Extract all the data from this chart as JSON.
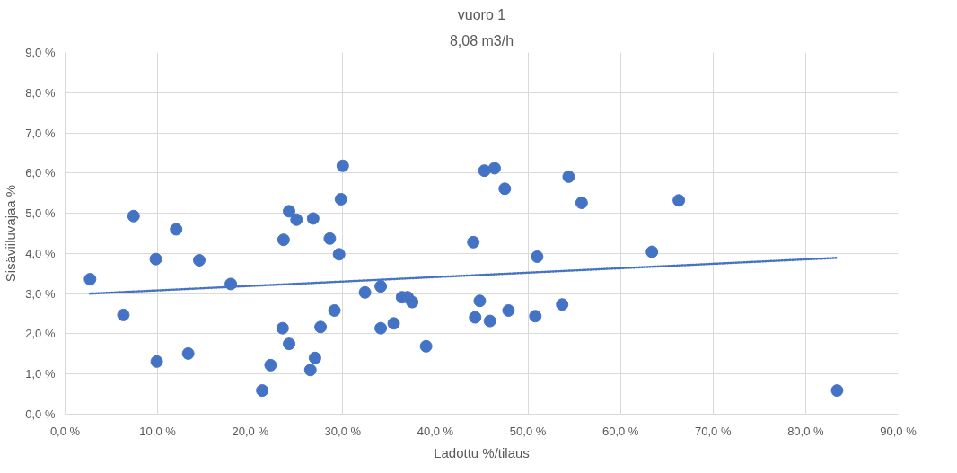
{
  "chart_data": {
    "type": "scatter",
    "title": "vuoro 1",
    "subtitle": "8,08 m3/h",
    "xlabel": "Ladottu %/tilaus",
    "ylabel": "Sisäviiluvajaa %",
    "xlim": [
      0,
      90
    ],
    "ylim": [
      0,
      9
    ],
    "xticks": [
      {
        "value": 0,
        "label": "0,0 %"
      },
      {
        "value": 10,
        "label": "10,0 %"
      },
      {
        "value": 20,
        "label": "20,0 %"
      },
      {
        "value": 30,
        "label": "30,0 %"
      },
      {
        "value": 40,
        "label": "40,0 %"
      },
      {
        "value": 50,
        "label": "50,0 %"
      },
      {
        "value": 60,
        "label": "60,0 %"
      },
      {
        "value": 70,
        "label": "70,0 %"
      },
      {
        "value": 80,
        "label": "80,0 %"
      },
      {
        "value": 90,
        "label": "90,0 %"
      }
    ],
    "yticks": [
      {
        "value": 0,
        "label": "0,0 %"
      },
      {
        "value": 1,
        "label": "1,0 %"
      },
      {
        "value": 2,
        "label": "2,0 %"
      },
      {
        "value": 3,
        "label": "3,0 %"
      },
      {
        "value": 4,
        "label": "4,0 %"
      },
      {
        "value": 5,
        "label": "5,0 %"
      },
      {
        "value": 6,
        "label": "6,0 %"
      },
      {
        "value": 7,
        "label": "7,0 %"
      },
      {
        "value": 8,
        "label": "8,0 %"
      },
      {
        "value": 9,
        "label": "9,0 %"
      }
    ],
    "grid": true,
    "marker": "circle",
    "series": [
      {
        "color": "#4472c4",
        "x": [
          2.7,
          6.3,
          7.4,
          9.8,
          9.9,
          12.0,
          13.3,
          14.5,
          17.9,
          21.3,
          22.2,
          23.5,
          23.6,
          24.2,
          24.2,
          25.0,
          26.5,
          26.8,
          27.0,
          27.6,
          28.6,
          29.1,
          29.6,
          29.8,
          30.0,
          32.4,
          34.1,
          34.1,
          35.5,
          36.4,
          37.0,
          37.5,
          39.0,
          44.1,
          44.3,
          44.8,
          45.3,
          45.9,
          46.4,
          47.5,
          47.9,
          51.0,
          50.8,
          53.7,
          54.4,
          55.8,
          63.4,
          66.3,
          83.4
        ],
        "values": [
          3.36,
          2.47,
          4.93,
          3.86,
          1.31,
          4.6,
          1.51,
          3.83,
          3.24,
          0.59,
          1.22,
          2.14,
          4.34,
          5.05,
          1.75,
          4.84,
          1.1,
          4.87,
          1.4,
          2.17,
          4.37,
          2.58,
          3.98,
          5.35,
          6.18,
          3.03,
          3.18,
          2.14,
          2.26,
          2.91,
          2.91,
          2.79,
          1.69,
          4.28,
          2.41,
          2.82,
          6.06,
          2.32,
          6.12,
          5.61,
          2.58,
          3.92,
          2.44,
          2.73,
          5.91,
          5.26,
          4.04,
          5.32,
          0.59
        ]
      },
      {
        "type": "line",
        "color": "#4472c4",
        "line_style": "dotted",
        "marker": "none",
        "x": [
          2.7,
          83.4
        ],
        "values": [
          3.0,
          3.89
        ]
      }
    ]
  }
}
